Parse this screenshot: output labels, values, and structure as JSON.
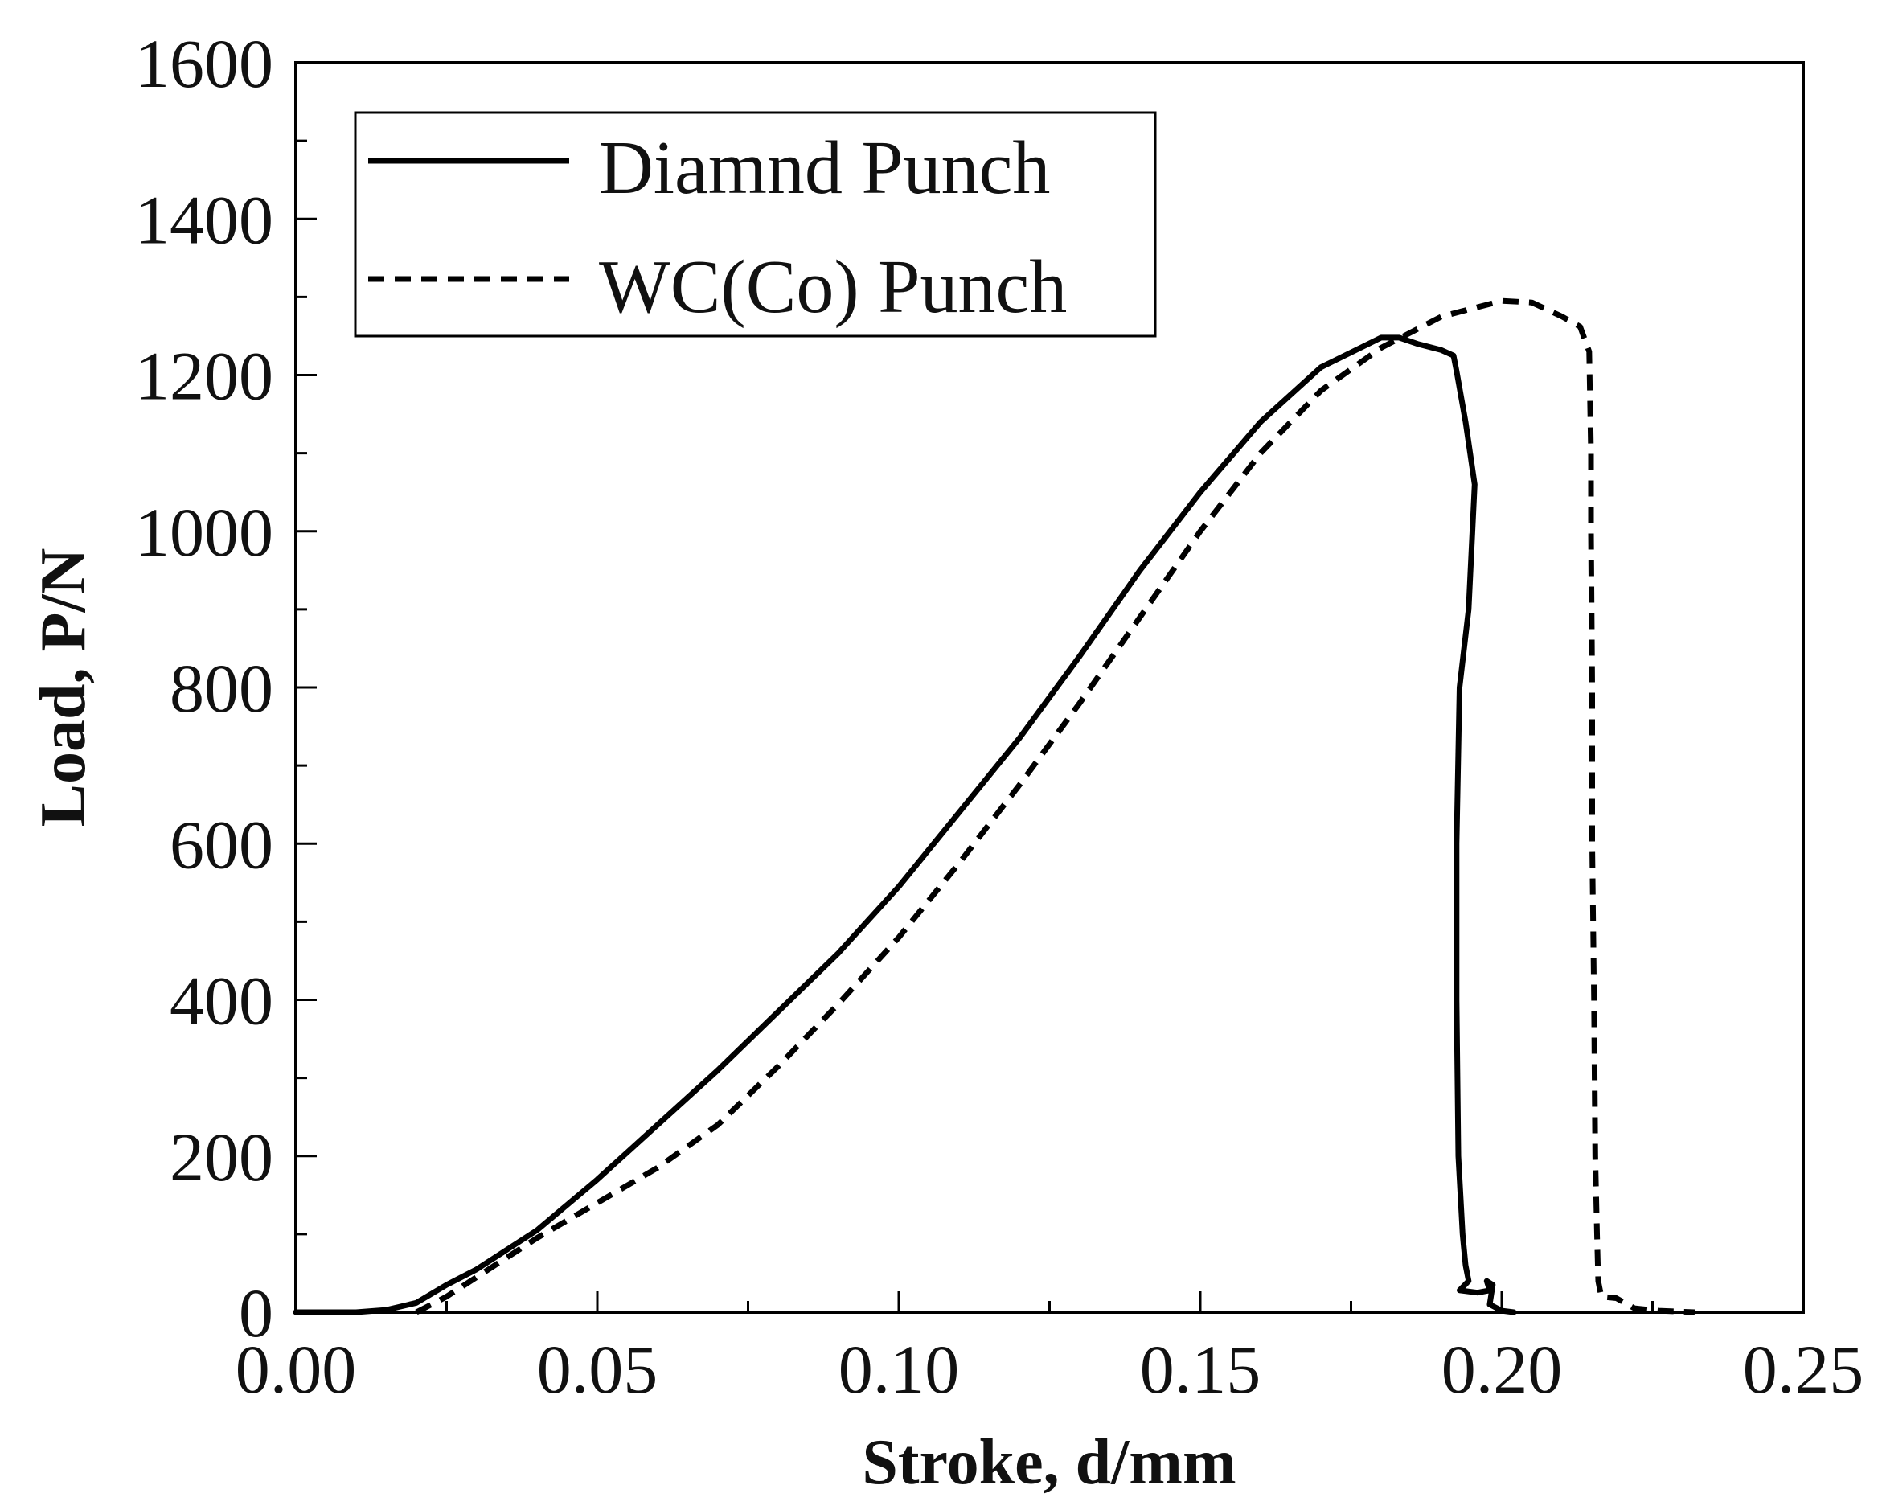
{
  "chart_data": {
    "type": "line",
    "title": "",
    "xlabel": "Stroke, d/mm",
    "ylabel": "Load, P/N",
    "xlim": [
      0.0,
      0.25
    ],
    "ylim": [
      0,
      1600
    ],
    "x_ticks": [
      "0.00",
      "0.05",
      "0.10",
      "0.15",
      "0.20",
      "0.25"
    ],
    "x_tick_values": [
      0.0,
      0.05,
      0.1,
      0.15,
      0.2,
      0.25
    ],
    "y_ticks": [
      "0",
      "200",
      "400",
      "600",
      "800",
      "1000",
      "1200",
      "1400",
      "1600"
    ],
    "y_tick_values": [
      0,
      200,
      400,
      600,
      800,
      1000,
      1200,
      1400,
      1600
    ],
    "grid": false,
    "legend_position": "top-left",
    "series": [
      {
        "name": "Diamnd Punch",
        "style": "solid",
        "color": "#000000",
        "points": [
          [
            0.0,
            0
          ],
          [
            0.01,
            0
          ],
          [
            0.015,
            3
          ],
          [
            0.02,
            12
          ],
          [
            0.025,
            35
          ],
          [
            0.03,
            55
          ],
          [
            0.04,
            105
          ],
          [
            0.05,
            170
          ],
          [
            0.06,
            240
          ],
          [
            0.07,
            310
          ],
          [
            0.08,
            385
          ],
          [
            0.09,
            460
          ],
          [
            0.1,
            545
          ],
          [
            0.11,
            640
          ],
          [
            0.12,
            735
          ],
          [
            0.13,
            840
          ],
          [
            0.14,
            950
          ],
          [
            0.15,
            1050
          ],
          [
            0.16,
            1140
          ],
          [
            0.17,
            1210
          ],
          [
            0.18,
            1248
          ],
          [
            0.183,
            1248
          ],
          [
            0.186,
            1240
          ],
          [
            0.19,
            1232
          ],
          [
            0.192,
            1225
          ],
          [
            0.1925,
            1205
          ],
          [
            0.194,
            1140
          ],
          [
            0.1955,
            1060
          ],
          [
            0.1945,
            900
          ],
          [
            0.193,
            800
          ],
          [
            0.1925,
            600
          ],
          [
            0.1925,
            400
          ],
          [
            0.1928,
            200
          ],
          [
            0.1935,
            100
          ],
          [
            0.194,
            60
          ],
          [
            0.1945,
            40
          ],
          [
            0.193,
            28
          ],
          [
            0.196,
            25
          ],
          [
            0.198,
            28
          ],
          [
            0.1975,
            40
          ],
          [
            0.1985,
            35
          ],
          [
            0.198,
            10
          ],
          [
            0.2,
            2
          ],
          [
            0.202,
            0
          ]
        ]
      },
      {
        "name": "WC(Co) Punch",
        "style": "dashed",
        "color": "#000000",
        "points": [
          [
            0.02,
            0
          ],
          [
            0.025,
            20
          ],
          [
            0.03,
            45
          ],
          [
            0.04,
            95
          ],
          [
            0.05,
            140
          ],
          [
            0.06,
            185
          ],
          [
            0.07,
            240
          ],
          [
            0.08,
            315
          ],
          [
            0.09,
            395
          ],
          [
            0.1,
            480
          ],
          [
            0.11,
            575
          ],
          [
            0.12,
            675
          ],
          [
            0.13,
            780
          ],
          [
            0.14,
            890
          ],
          [
            0.15,
            1000
          ],
          [
            0.16,
            1100
          ],
          [
            0.17,
            1180
          ],
          [
            0.18,
            1235
          ],
          [
            0.19,
            1275
          ],
          [
            0.2,
            1295
          ],
          [
            0.205,
            1293
          ],
          [
            0.21,
            1275
          ],
          [
            0.213,
            1262
          ],
          [
            0.2145,
            1230
          ],
          [
            0.2148,
            1100
          ],
          [
            0.2148,
            1000
          ],
          [
            0.215,
            800
          ],
          [
            0.215,
            600
          ],
          [
            0.2153,
            400
          ],
          [
            0.2155,
            200
          ],
          [
            0.2158,
            100
          ],
          [
            0.216,
            40
          ],
          [
            0.2165,
            20
          ],
          [
            0.219,
            18
          ],
          [
            0.222,
            5
          ],
          [
            0.226,
            2
          ],
          [
            0.232,
            0
          ]
        ]
      }
    ]
  }
}
